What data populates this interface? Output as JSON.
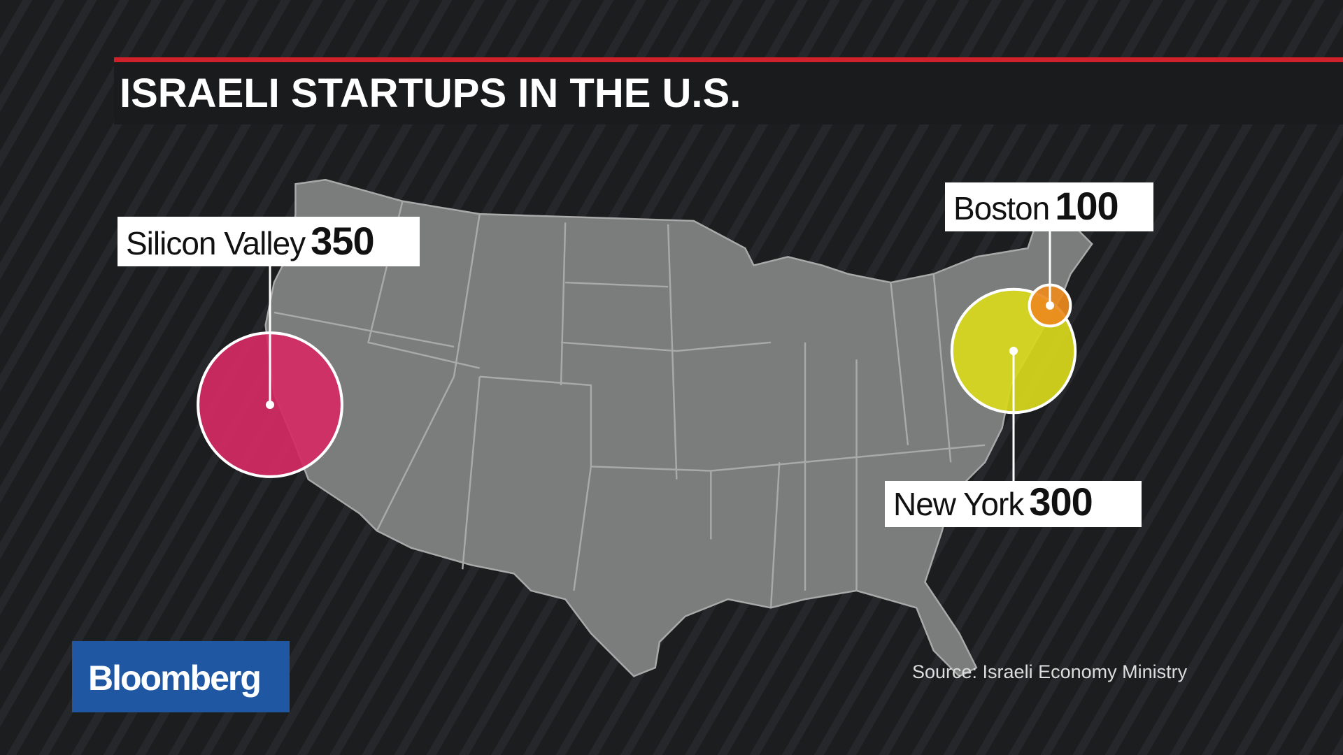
{
  "title": "ISRAELI STARTUPS IN THE U.S.",
  "locations": [
    {
      "name": "Silicon Valley",
      "value": 350,
      "color": "#d42a63"
    },
    {
      "name": "New York",
      "value": 300,
      "color": "#d8d91c"
    },
    {
      "name": "Boston",
      "value": 100,
      "color": "#ec8a1e"
    }
  ],
  "source": "Source: Israeli Economy Ministry",
  "logo": "Bloomberg"
}
